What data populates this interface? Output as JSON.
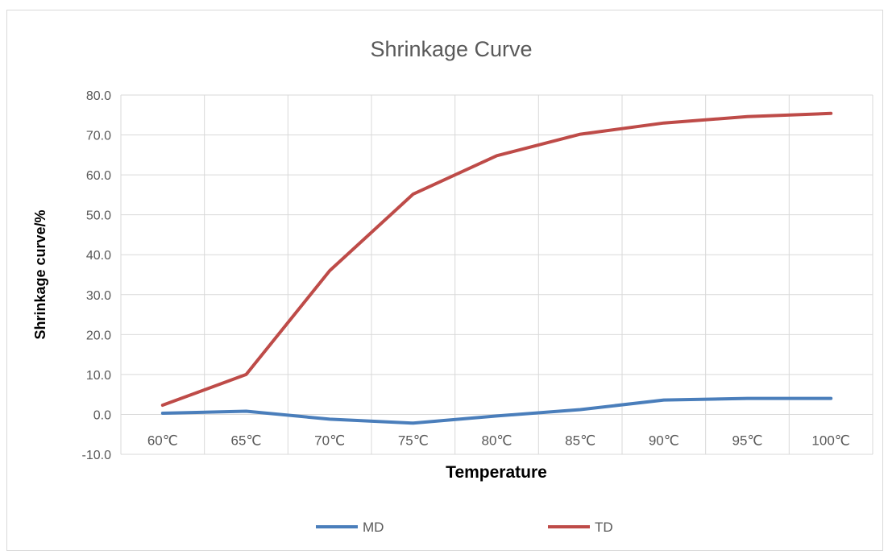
{
  "chart_data": {
    "type": "line",
    "title": "Shrinkage Curve",
    "xlabel": "Temperature",
    "ylabel": "Shrinkage curve/%",
    "categories": [
      "60℃",
      "65℃",
      "70℃",
      "75℃",
      "80℃",
      "85℃",
      "90℃",
      "95℃",
      "100℃"
    ],
    "ylim": [
      -10,
      80
    ],
    "yticks": [
      "-10.0",
      "0.0",
      "10.0",
      "20.0",
      "30.0",
      "40.0",
      "50.0",
      "60.0",
      "70.0",
      "80.0"
    ],
    "grid": true,
    "legend_position": "bottom",
    "series": [
      {
        "name": "MD",
        "color": "#4a7ebb",
        "values": [
          0.3,
          0.8,
          -1.2,
          -2.2,
          -0.4,
          1.2,
          3.6,
          4.0,
          4.0
        ]
      },
      {
        "name": "TD",
        "color": "#be4b48",
        "values": [
          2.3,
          10.0,
          36.0,
          55.2,
          64.8,
          70.2,
          73.0,
          74.6,
          75.4
        ]
      }
    ]
  }
}
